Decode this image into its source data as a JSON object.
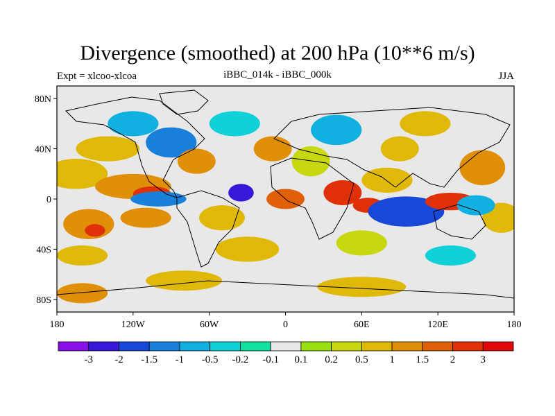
{
  "figure": {
    "title": "Divergence (smoothed) at 200 hPa (10**6 m/s)",
    "left_label": "Expt = xlcoo-xlcoa",
    "center_label": "iBBC_014k - iBBC_000k",
    "right_label": "JJA"
  },
  "axes": {
    "y_ticks": [
      {
        "label": "80N",
        "lat": 80
      },
      {
        "label": "40N",
        "lat": 40
      },
      {
        "label": "0",
        "lat": 0
      },
      {
        "label": "40S",
        "lat": -40
      },
      {
        "label": "80S",
        "lat": -80
      }
    ],
    "x_ticks": [
      {
        "label": "180",
        "lon": -180
      },
      {
        "label": "120W",
        "lon": -120
      },
      {
        "label": "60W",
        "lon": -60
      },
      {
        "label": "0",
        "lon": 0
      },
      {
        "label": "60E",
        "lon": 60
      },
      {
        "label": "120E",
        "lon": 120
      },
      {
        "label": "180",
        "lon": 180
      }
    ],
    "lon_range": [
      -180,
      180
    ],
    "lat_range": [
      -90,
      90
    ]
  },
  "colorbar": {
    "colors": [
      "#8a10e8",
      "#3818d8",
      "#1848d8",
      "#1880d8",
      "#10b0e0",
      "#10d0d8",
      "#10e0a0",
      "#e8e8e8",
      "#98e010",
      "#c8d810",
      "#e0b808",
      "#e09008",
      "#e06008",
      "#e03008",
      "#e00808"
    ],
    "labels": [
      "-3",
      "-2",
      "-1.5",
      "-1",
      "-0.5",
      "-0.2",
      "-0.1",
      "0.1",
      "0.2",
      "0.5",
      "1",
      "1.5",
      "2",
      "3"
    ]
  },
  "field_blobs": [
    {
      "lon": -165,
      "lat": 20,
      "rlon": 25,
      "rlat": 12,
      "level": 10
    },
    {
      "lon": -120,
      "lat": 10,
      "rlon": 30,
      "rlat": 10,
      "level": 11
    },
    {
      "lon": -105,
      "lat": 4,
      "rlon": 15,
      "rlat": 6,
      "level": 13
    },
    {
      "lon": -140,
      "lat": 40,
      "rlon": 25,
      "rlat": 10,
      "level": 10
    },
    {
      "lon": -90,
      "lat": 45,
      "rlon": 20,
      "rlat": 12,
      "level": 3
    },
    {
      "lon": -70,
      "lat": 30,
      "rlon": 15,
      "rlat": 10,
      "level": 11
    },
    {
      "lon": -35,
      "lat": 5,
      "rlon": 10,
      "rlat": 7,
      "level": 1
    },
    {
      "lon": -50,
      "lat": -15,
      "rlon": 18,
      "rlat": 10,
      "level": 10
    },
    {
      "lon": -155,
      "lat": -20,
      "rlon": 20,
      "rlat": 12,
      "level": 11
    },
    {
      "lon": -150,
      "lat": -25,
      "rlon": 8,
      "rlat": 5,
      "level": 13
    },
    {
      "lon": -110,
      "lat": -15,
      "rlon": 20,
      "rlat": 8,
      "level": 11
    },
    {
      "lon": -100,
      "lat": 0,
      "rlon": 22,
      "rlat": 6,
      "level": 3
    },
    {
      "lon": -30,
      "lat": -40,
      "rlon": 25,
      "rlat": 10,
      "level": 10
    },
    {
      "lon": 0,
      "lat": 0,
      "rlon": 15,
      "rlat": 8,
      "level": 12
    },
    {
      "lon": 45,
      "lat": 5,
      "rlon": 15,
      "rlat": 10,
      "level": 13
    },
    {
      "lon": 65,
      "lat": -5,
      "rlon": 12,
      "rlat": 6,
      "level": 13
    },
    {
      "lon": 80,
      "lat": 15,
      "rlon": 20,
      "rlat": 10,
      "level": 10
    },
    {
      "lon": 105,
      "lat": -8,
      "rlon": 15,
      "rlat": 7,
      "level": 0
    },
    {
      "lon": 95,
      "lat": -10,
      "rlon": 30,
      "rlat": 12,
      "level": 2
    },
    {
      "lon": 130,
      "lat": -2,
      "rlon": 20,
      "rlat": 7,
      "level": 13
    },
    {
      "lon": 155,
      "lat": 25,
      "rlon": 18,
      "rlat": 14,
      "level": 11
    },
    {
      "lon": 170,
      "lat": -15,
      "rlon": 15,
      "rlat": 12,
      "level": 10
    },
    {
      "lon": 60,
      "lat": -35,
      "rlon": 20,
      "rlat": 10,
      "level": 9
    },
    {
      "lon": 130,
      "lat": -45,
      "rlon": 20,
      "rlat": 8,
      "level": 5
    },
    {
      "lon": -160,
      "lat": -45,
      "rlon": 20,
      "rlat": 8,
      "level": 10
    },
    {
      "lon": 20,
      "lat": 30,
      "rlon": 15,
      "rlat": 12,
      "level": 9
    },
    {
      "lon": 40,
      "lat": 55,
      "rlon": 20,
      "rlat": 12,
      "level": 4
    },
    {
      "lon": 90,
      "lat": 40,
      "rlon": 15,
      "rlat": 10,
      "level": 10
    },
    {
      "lon": -10,
      "lat": 40,
      "rlon": 15,
      "rlat": 10,
      "level": 11
    },
    {
      "lon": 110,
      "lat": 60,
      "rlon": 20,
      "rlat": 10,
      "level": 10
    },
    {
      "lon": -120,
      "lat": 60,
      "rlon": 20,
      "rlat": 10,
      "level": 4
    },
    {
      "lon": -40,
      "lat": 60,
      "rlon": 20,
      "rlat": 10,
      "level": 5
    },
    {
      "lon": 150,
      "lat": -5,
      "rlon": 15,
      "rlat": 8,
      "level": 4
    },
    {
      "lon": -80,
      "lat": -65,
      "rlon": 30,
      "rlat": 8,
      "level": 10
    },
    {
      "lon": 60,
      "lat": -70,
      "rlon": 35,
      "rlat": 8,
      "level": 10
    },
    {
      "lon": -160,
      "lat": -75,
      "rlon": 20,
      "rlat": 8,
      "level": 11
    }
  ]
}
